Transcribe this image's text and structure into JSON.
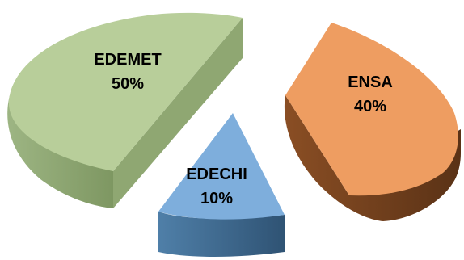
{
  "chart_data": {
    "type": "pie",
    "style": "3d-exploded",
    "title": "",
    "legend": "none",
    "slices": [
      {
        "label": "EDEMET",
        "value": 50,
        "value_label": "50%",
        "color": "#B8CE9A",
        "side_color": "#8AA06B"
      },
      {
        "label": "ENSA",
        "value": 40,
        "value_label": "40%",
        "color": "#EE9D61",
        "side_color": "#71401E"
      },
      {
        "label": "EDECHI",
        "value": 10,
        "value_label": "10%",
        "color": "#7EAEDC",
        "side_color": "#3F6A8E"
      }
    ]
  }
}
